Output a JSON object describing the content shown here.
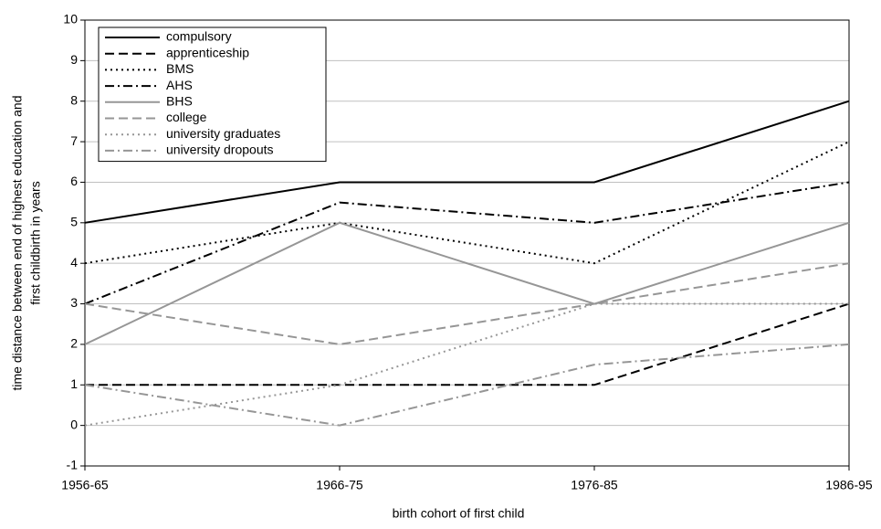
{
  "chart_data": {
    "type": "line",
    "xlabel": "birth cohort of first child",
    "ylabel": [
      "time distance between end of highest education and",
      "first childbirth in years"
    ],
    "categories": [
      "1956-65",
      "1966-75",
      "1976-85",
      "1986-95"
    ],
    "ylim": [
      -1,
      10
    ],
    "yticks": [
      -1,
      0,
      1,
      2,
      3,
      4,
      5,
      6,
      7,
      8,
      9,
      10
    ],
    "grid": true,
    "legend": "upper left",
    "series": [
      {
        "name": "compulsory",
        "color": "#000000",
        "dash": "solid",
        "values": [
          5,
          6,
          6,
          8
        ]
      },
      {
        "name": "apprenticeship",
        "color": "#000000",
        "dash": "dashed",
        "values": [
          1,
          1,
          1,
          3
        ]
      },
      {
        "name": "BMS",
        "color": "#000000",
        "dash": "dotted",
        "values": [
          4,
          5,
          4,
          7
        ]
      },
      {
        "name": "AHS",
        "color": "#000000",
        "dash": "dashdot",
        "values": [
          3,
          5.5,
          5,
          6
        ]
      },
      {
        "name": "BHS",
        "color": "#969696",
        "dash": "solid",
        "values": [
          2,
          5,
          3,
          5
        ]
      },
      {
        "name": "college",
        "color": "#969696",
        "dash": "dashed",
        "values": [
          3,
          2,
          3,
          4
        ]
      },
      {
        "name": "university graduates",
        "color": "#969696",
        "dash": "dotted",
        "values": [
          0,
          1,
          3,
          3
        ]
      },
      {
        "name": "university dropouts",
        "color": "#969696",
        "dash": "dashdot",
        "values": [
          1,
          0,
          1.5,
          2
        ]
      }
    ]
  }
}
